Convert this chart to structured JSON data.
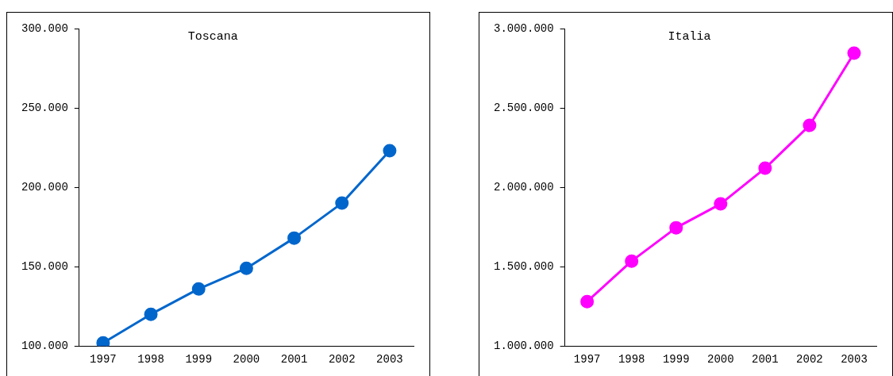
{
  "chart_data": [
    {
      "type": "line",
      "title": "Toscana",
      "categories": [
        "1997",
        "1998",
        "1999",
        "2000",
        "2001",
        "2002",
        "2003"
      ],
      "series": [
        {
          "color": "#0066cc",
          "values": [
            102000,
            120000,
            136000,
            149000,
            168000,
            190000,
            223000
          ]
        }
      ],
      "ylim": [
        100000,
        300000
      ],
      "yticks": [
        {
          "value": 100000,
          "label": "100.000"
        },
        {
          "value": 150000,
          "label": "150.000"
        },
        {
          "value": 200000,
          "label": "200.000"
        },
        {
          "value": 250000,
          "label": "250.000"
        },
        {
          "value": 300000,
          "label": "300.000"
        }
      ],
      "grid": false,
      "legend": false,
      "marker": "circle",
      "line_style": "solid"
    },
    {
      "type": "line",
      "title": "Italia",
      "categories": [
        "1997",
        "1998",
        "1999",
        "2000",
        "2001",
        "2002",
        "2003"
      ],
      "series": [
        {
          "color": "#ff00ff",
          "values": [
            1280000,
            1535000,
            1745000,
            1895000,
            2120000,
            2390000,
            2845000
          ]
        }
      ],
      "ylim": [
        1000000,
        3000000
      ],
      "yticks": [
        {
          "value": 1000000,
          "label": "1.000.000"
        },
        {
          "value": 1500000,
          "label": "1.500.000"
        },
        {
          "value": 2000000,
          "label": "2.000.000"
        },
        {
          "value": 2500000,
          "label": "2.500.000"
        },
        {
          "value": 3000000,
          "label": "3.000.000"
        }
      ],
      "grid": false,
      "legend": false,
      "marker": "circle",
      "line_style": "solid"
    }
  ]
}
